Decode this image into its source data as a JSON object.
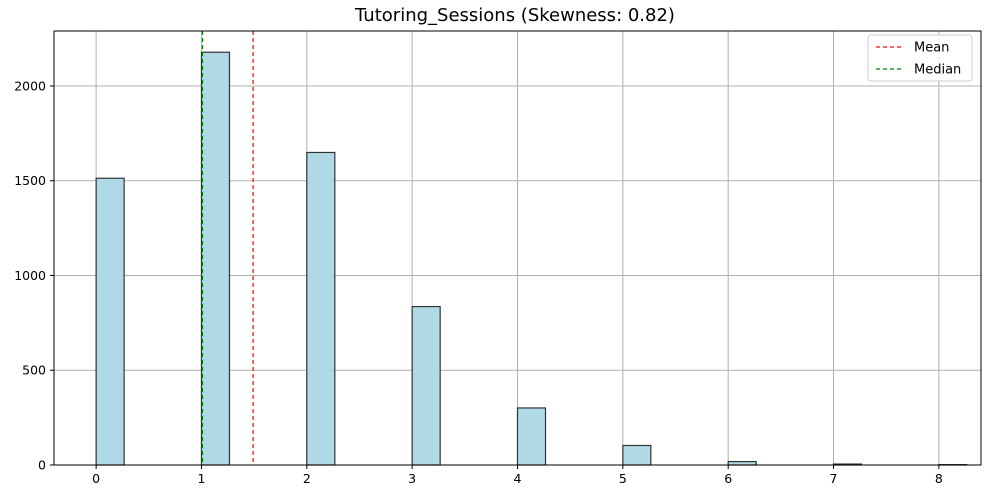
{
  "chart_data": {
    "type": "bar",
    "title": "Tutoring_Sessions (Skewness: 0.82)",
    "xlabel": "",
    "ylabel": "",
    "x": [
      0,
      1,
      2,
      3,
      4,
      5,
      6,
      7,
      8
    ],
    "values": [
      1513,
      2178,
      1649,
      836,
      301,
      103,
      18,
      5,
      2
    ],
    "xlim": [
      -0.4,
      8.4
    ],
    "ylim": [
      0,
      2290
    ],
    "xticks": [
      0,
      1,
      2,
      3,
      4,
      5,
      6,
      7,
      8
    ],
    "yticks": [
      0,
      500,
      1000,
      1500,
      2000
    ],
    "bar_color": "#add8e6",
    "bar_edge_color": "#333333",
    "grid": true,
    "mean": 1.49,
    "median": 1,
    "legend_position": "top-right",
    "legend": [
      {
        "label": "Mean",
        "color": "#ff0000",
        "style": "dashed"
      },
      {
        "label": "Median",
        "color": "#008000",
        "style": "dashed"
      }
    ]
  }
}
